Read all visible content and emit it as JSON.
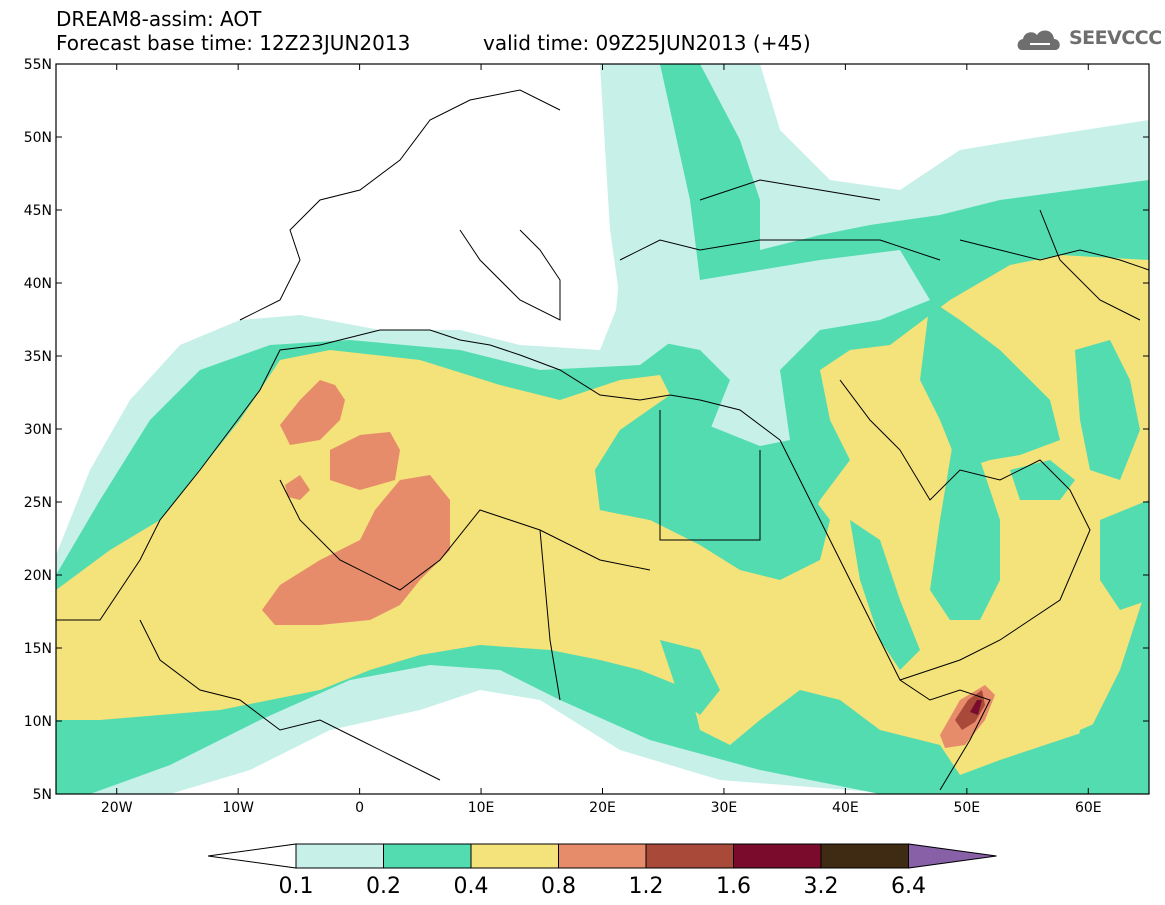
{
  "header": {
    "line1": "DREAM8-assim: AOT",
    "line2": "Forecast base time: 12Z23JUN2013",
    "valid": "valid time: 09Z25JUN2013 (+45)",
    "logo": "SEEVCCC"
  },
  "map": {
    "lon_range": [
      -25,
      65
    ],
    "lat_range": [
      5,
      55
    ],
    "y_ticks": [
      "5N",
      "10N",
      "15N",
      "20N",
      "25N",
      "30N",
      "35N",
      "40N",
      "45N",
      "50N",
      "55N"
    ],
    "x_ticks": [
      "20W",
      "10W",
      "0",
      "10E",
      "20E",
      "30E",
      "40E",
      "50E",
      "60E"
    ],
    "variable": "Aerosol optical thickness (AOT)"
  },
  "colorbar": {
    "levels": [
      "0.1",
      "0.2",
      "0.4",
      "0.8",
      "1.2",
      "1.6",
      "3.2",
      "6.4"
    ],
    "colors": [
      "#ffffff",
      "#c6f0e8",
      "#52dcb0",
      "#f4e27a",
      "#e78c6b",
      "#a8493a",
      "#7a0b2c",
      "#3f2a14",
      "#8860a8"
    ]
  },
  "palette": {
    "background": "#ffffff",
    "aot_01": "#c6f0e8",
    "aot_02": "#52dcb0",
    "aot_04": "#f4e27a",
    "aot_08": "#e78c6b",
    "aot_12": "#a8493a",
    "aot_16": "#7a0b2c"
  }
}
